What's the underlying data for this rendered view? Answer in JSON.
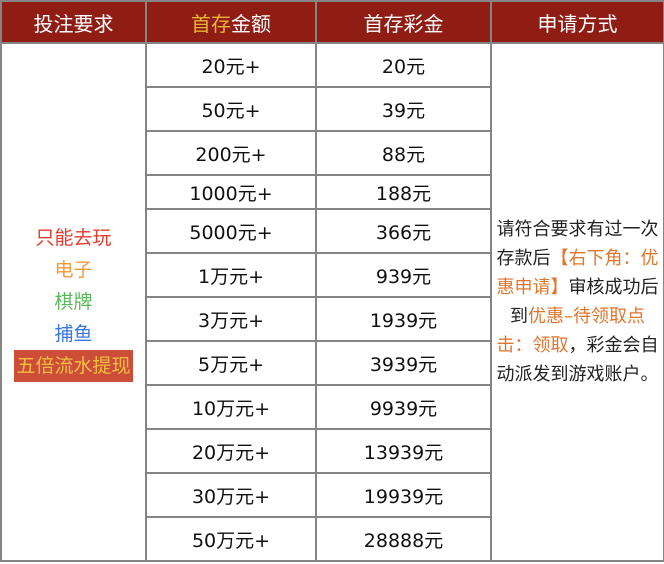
{
  "header": {
    "col1": "投注要求",
    "col2_highlight": "首存",
    "col2_rest": "金额",
    "col3": "首存彩金",
    "col4": "申请方式"
  },
  "rows": [
    {
      "amount": "20元+",
      "bonus": "20元"
    },
    {
      "amount": "50元+",
      "bonus": "39元"
    },
    {
      "amount": "200元+",
      "bonus": "88元"
    },
    {
      "amount": "1000元+",
      "bonus": "188元"
    },
    {
      "amount": "5000元+",
      "bonus": "366元"
    },
    {
      "amount": "1万元+",
      "bonus": "939元"
    },
    {
      "amount": "3万元+",
      "bonus": "1939元"
    },
    {
      "amount": "5万元+",
      "bonus": "3939元"
    },
    {
      "amount": "10万元+",
      "bonus": "9939元"
    },
    {
      "amount": "20万元+",
      "bonus": "13939元"
    },
    {
      "amount": "30万元+",
      "bonus": "19939元"
    },
    {
      "amount": "50万元+",
      "bonus": "28888元"
    }
  ],
  "requirement": {
    "line1": "只能去玩",
    "line2": "电子",
    "line3": "棋牌",
    "line4": "捕鱼",
    "line5": "五倍流水提现"
  },
  "apply": {
    "p1": "请符合要求有过一次存款后",
    "p2": "【右下角：优惠申请】",
    "p3": "审核成功后到",
    "p4": "优惠–待领取点击：领取",
    "p5": "，彩金会自动派发到游戏账户。"
  },
  "colors": {
    "header_bg": "#8f1d14",
    "header_highlight": "#e8b43a",
    "red": "#e53b2e",
    "orange": "#f09a3a",
    "green": "#5cb85c",
    "blue": "#3a78e0",
    "accent": "#e0762e"
  }
}
